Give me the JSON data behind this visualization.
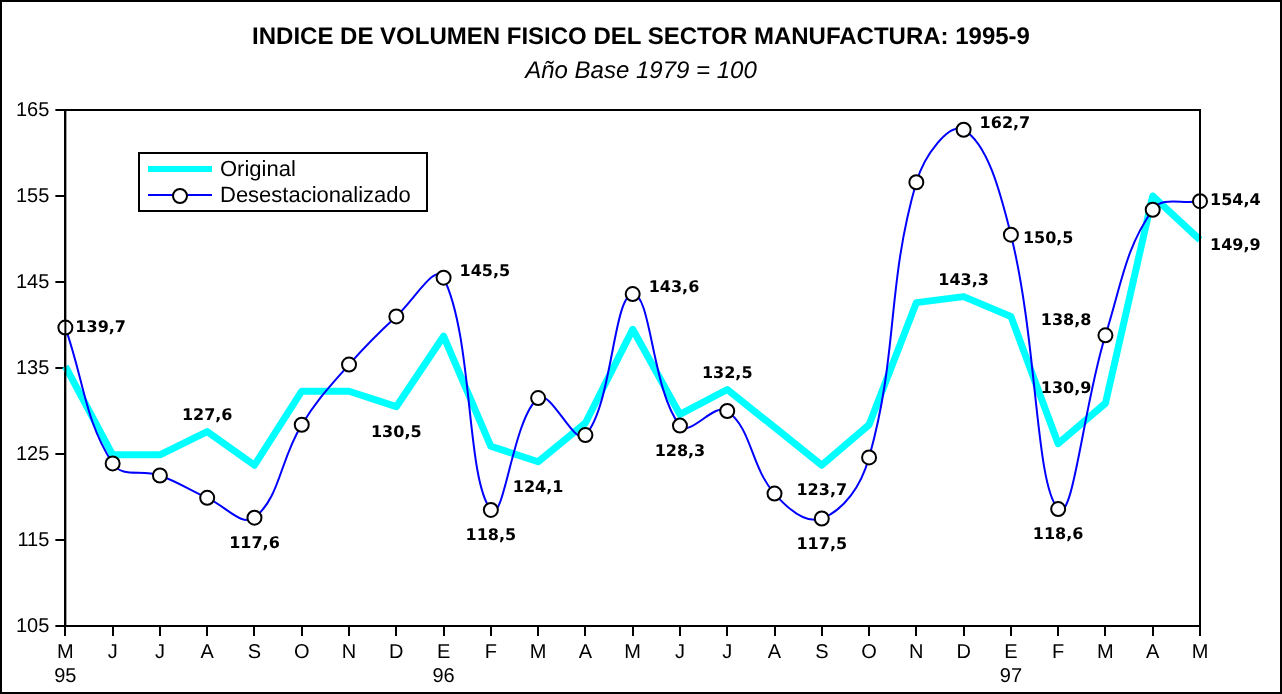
{
  "chart_data": {
    "type": "line",
    "title": "INDICE DE VOLUMEN FISICO DEL SECTOR MANUFACTURA: 1995-9",
    "subtitle": "Año Base 1979 = 100",
    "categories": [
      "M\n95",
      "J",
      "J",
      "A",
      "S",
      "O",
      "N",
      "D",
      "E\n96",
      "F",
      "M",
      "A",
      "M",
      "J",
      "J",
      "A",
      "S",
      "O",
      "N",
      "D",
      "E\n97",
      "F",
      "M",
      "A",
      "M"
    ],
    "series": [
      {
        "name": "Original",
        "color": "#00ffff",
        "marker": "none",
        "values": [
          135.2,
          124.9,
          124.9,
          127.6,
          123.7,
          132.3,
          132.3,
          130.5,
          138.7,
          125.9,
          124.1,
          128.6,
          139.5,
          129.6,
          132.5,
          128.1,
          123.7,
          128.4,
          142.6,
          143.3,
          141.0,
          126.2,
          130.9,
          155.0,
          149.9
        ],
        "value_labels": [
          null,
          null,
          null,
          "127,6",
          null,
          null,
          null,
          "130,5",
          null,
          null,
          "124,1",
          null,
          null,
          null,
          "132,5",
          null,
          "123,7",
          null,
          null,
          "143,3",
          null,
          null,
          "130,9",
          null,
          "149,9"
        ]
      },
      {
        "name": "Desestacionalizado",
        "color": "#0000ff",
        "marker": "circle",
        "values": [
          139.7,
          123.9,
          122.5,
          119.9,
          117.6,
          128.4,
          135.4,
          141.0,
          145.5,
          118.5,
          131.5,
          127.2,
          143.6,
          128.3,
          130.0,
          120.4,
          117.5,
          124.6,
          156.6,
          162.7,
          150.5,
          118.6,
          138.8,
          153.4,
          154.4
        ],
        "value_labels": [
          "139,7",
          null,
          null,
          null,
          "117,6",
          null,
          null,
          null,
          "145,5",
          "118,5",
          null,
          null,
          "143,6",
          "128,3",
          null,
          null,
          "117,5",
          null,
          null,
          "162,7",
          "150,5",
          "118,6",
          "138,8",
          null,
          "154,4"
        ]
      }
    ],
    "ylim": [
      105,
      165
    ],
    "yticks": [
      105,
      115,
      125,
      135,
      145,
      155,
      165
    ],
    "grid": false,
    "legend": "top left"
  }
}
